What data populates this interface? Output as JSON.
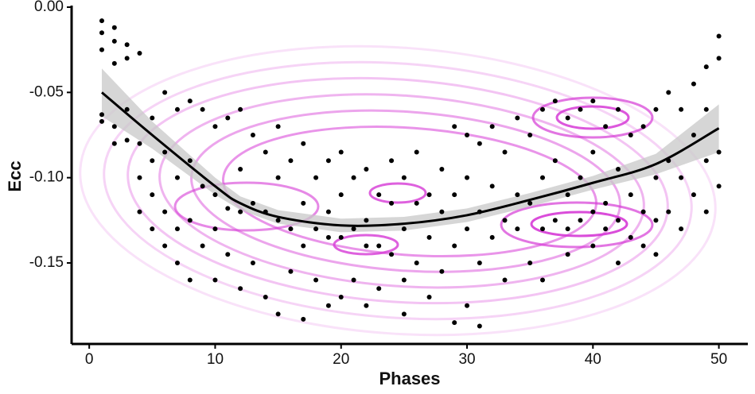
{
  "chart_data": {
    "type": "scatter",
    "x_label": "Phases",
    "y_label": "Ecc",
    "xlim": [
      -1.4,
      52.3
    ],
    "ylim": [
      -0.1975,
      0.0
    ],
    "xticks": [
      0,
      10,
      20,
      30,
      40,
      50
    ],
    "yticks": [
      {
        "value": 0.0,
        "label": "0.00"
      },
      {
        "value": -0.05,
        "label": "-0.05"
      },
      {
        "value": -0.1,
        "label": "-0.10"
      },
      {
        "value": -0.15,
        "label": "-0.15"
      }
    ],
    "color": "#000000",
    "x": [
      1,
      1,
      1,
      1,
      1,
      2,
      2,
      2,
      2,
      2,
      3,
      3,
      3,
      3,
      4,
      4,
      4,
      4,
      5,
      5,
      5,
      5,
      6,
      6,
      6,
      6,
      7,
      7,
      7,
      7,
      8,
      8,
      8,
      8,
      9,
      9,
      9,
      10,
      10,
      10,
      10,
      11,
      11,
      11,
      12,
      12,
      12,
      12,
      13,
      13,
      13,
      14,
      14,
      14,
      15,
      15,
      15,
      15,
      16,
      16,
      16,
      17,
      17,
      17,
      17,
      18,
      18,
      18,
      19,
      19,
      19,
      19,
      20,
      20,
      20,
      20,
      21,
      21,
      21,
      22,
      22,
      22,
      22,
      23,
      23,
      23,
      24,
      24,
      24,
      25,
      25,
      25,
      25,
      26,
      26,
      26,
      27,
      27,
      27,
      28,
      28,
      28,
      29,
      29,
      29,
      29,
      30,
      30,
      30,
      30,
      31,
      31,
      31,
      31,
      32,
      32,
      32,
      33,
      33,
      33,
      34,
      34,
      34,
      35,
      35,
      35,
      36,
      36,
      36,
      36,
      37,
      37,
      37,
      38,
      38,
      38,
      38,
      39,
      39,
      39,
      40,
      40,
      40,
      40,
      41,
      41,
      41,
      42,
      42,
      42,
      42,
      43,
      43,
      43,
      44,
      44,
      44,
      45,
      45,
      45,
      45,
      46,
      46,
      46,
      47,
      47,
      47,
      48,
      48,
      48,
      49,
      49,
      49,
      49,
      50,
      50,
      50,
      50
    ],
    "values": [
      -0.008,
      -0.015,
      -0.025,
      -0.063,
      -0.067,
      -0.012,
      -0.02,
      -0.033,
      -0.07,
      -0.08,
      -0.022,
      -0.03,
      -0.06,
      -0.078,
      -0.027,
      -0.08,
      -0.1,
      -0.12,
      -0.065,
      -0.09,
      -0.11,
      -0.13,
      -0.05,
      -0.085,
      -0.12,
      -0.14,
      -0.06,
      -0.1,
      -0.13,
      -0.15,
      -0.055,
      -0.09,
      -0.125,
      -0.16,
      -0.06,
      -0.105,
      -0.14,
      -0.07,
      -0.11,
      -0.13,
      -0.16,
      -0.065,
      -0.118,
      -0.145,
      -0.06,
      -0.095,
      -0.12,
      -0.165,
      -0.075,
      -0.115,
      -0.15,
      -0.085,
      -0.12,
      -0.17,
      -0.07,
      -0.1,
      -0.125,
      -0.18,
      -0.09,
      -0.13,
      -0.155,
      -0.08,
      -0.115,
      -0.14,
      -0.183,
      -0.1,
      -0.13,
      -0.16,
      -0.09,
      -0.12,
      -0.135,
      -0.175,
      -0.085,
      -0.11,
      -0.135,
      -0.17,
      -0.1,
      -0.13,
      -0.16,
      -0.095,
      -0.125,
      -0.14,
      -0.175,
      -0.11,
      -0.14,
      -0.165,
      -0.09,
      -0.115,
      -0.145,
      -0.1,
      -0.13,
      -0.16,
      -0.18,
      -0.085,
      -0.115,
      -0.15,
      -0.11,
      -0.135,
      -0.17,
      -0.095,
      -0.12,
      -0.155,
      -0.07,
      -0.11,
      -0.14,
      -0.185,
      -0.075,
      -0.1,
      -0.13,
      -0.175,
      -0.08,
      -0.12,
      -0.15,
      -0.187,
      -0.07,
      -0.105,
      -0.135,
      -0.085,
      -0.125,
      -0.16,
      -0.065,
      -0.11,
      -0.13,
      -0.075,
      -0.115,
      -0.15,
      -0.06,
      -0.1,
      -0.13,
      -0.16,
      -0.055,
      -0.09,
      -0.125,
      -0.065,
      -0.11,
      -0.13,
      -0.145,
      -0.06,
      -0.1,
      -0.125,
      -0.055,
      -0.085,
      -0.12,
      -0.14,
      -0.07,
      -0.115,
      -0.13,
      -0.06,
      -0.095,
      -0.125,
      -0.15,
      -0.075,
      -0.11,
      -0.135,
      -0.07,
      -0.12,
      -0.14,
      -0.06,
      -0.1,
      -0.125,
      -0.145,
      -0.05,
      -0.09,
      -0.12,
      -0.06,
      -0.1,
      -0.13,
      -0.045,
      -0.075,
      -0.11,
      -0.035,
      -0.06,
      -0.09,
      -0.12,
      -0.017,
      -0.03,
      -0.085,
      -0.105
    ],
    "smooth": {
      "color": "#000000",
      "band_color": "#c8c8c8",
      "x": [
        1,
        5,
        10,
        12,
        15,
        20,
        25,
        30,
        35,
        40,
        45,
        50
      ],
      "values": [
        -0.05,
        -0.075,
        -0.105,
        -0.115,
        -0.123,
        -0.128,
        -0.127,
        -0.122,
        -0.113,
        -0.103,
        -0.092,
        -0.071
      ],
      "lower": [
        -0.064,
        -0.083,
        -0.11,
        -0.119,
        -0.127,
        -0.132,
        -0.131,
        -0.126,
        -0.117,
        -0.107,
        -0.098,
        -0.085
      ],
      "upper": [
        -0.036,
        -0.067,
        -0.1,
        -0.111,
        -0.119,
        -0.124,
        -0.123,
        -0.118,
        -0.109,
        -0.099,
        -0.086,
        -0.057
      ]
    }
  }
}
